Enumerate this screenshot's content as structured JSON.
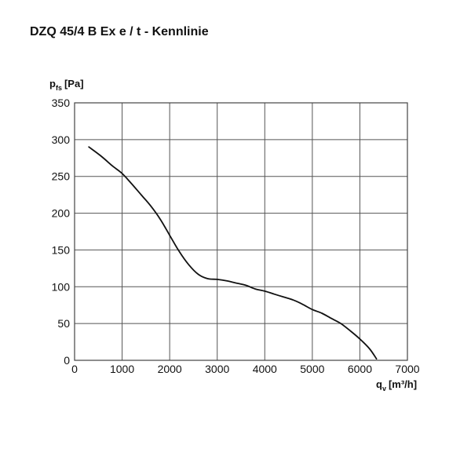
{
  "title": "DZQ 45/4 B Ex e / t - Kennlinie",
  "chart_data": {
    "type": "line",
    "ylabel": {
      "main": "p",
      "sub": "fs",
      "unit": "[Pa]"
    },
    "xlabel": {
      "main": "q",
      "sub": "v",
      "unit": "[m³/h]"
    },
    "xlim": [
      0,
      7000
    ],
    "ylim": [
      0,
      350
    ],
    "x_ticks": [
      "0",
      "1000",
      "2000",
      "3000",
      "4000",
      "5000",
      "6000",
      "7000"
    ],
    "y_ticks": [
      "0",
      "50",
      "100",
      "150",
      "200",
      "250",
      "300",
      "350"
    ],
    "grid": true,
    "series": [
      {
        "color": "#111111",
        "points": [
          [
            300,
            290
          ],
          [
            550,
            278
          ],
          [
            800,
            264
          ],
          [
            1000,
            254
          ],
          [
            1200,
            240
          ],
          [
            1400,
            225
          ],
          [
            1600,
            210
          ],
          [
            1800,
            192
          ],
          [
            2000,
            170
          ],
          [
            2200,
            148
          ],
          [
            2400,
            130
          ],
          [
            2600,
            117
          ],
          [
            2800,
            111
          ],
          [
            3000,
            110
          ],
          [
            3200,
            108
          ],
          [
            3400,
            105
          ],
          [
            3600,
            102
          ],
          [
            3800,
            97
          ],
          [
            4000,
            94
          ],
          [
            4200,
            90
          ],
          [
            4400,
            86
          ],
          [
            4600,
            82
          ],
          [
            4800,
            76
          ],
          [
            5000,
            69
          ],
          [
            5200,
            64
          ],
          [
            5400,
            57
          ],
          [
            5600,
            50
          ],
          [
            5800,
            40
          ],
          [
            6000,
            29
          ],
          [
            6200,
            16
          ],
          [
            6350,
            2
          ]
        ]
      }
    ]
  }
}
